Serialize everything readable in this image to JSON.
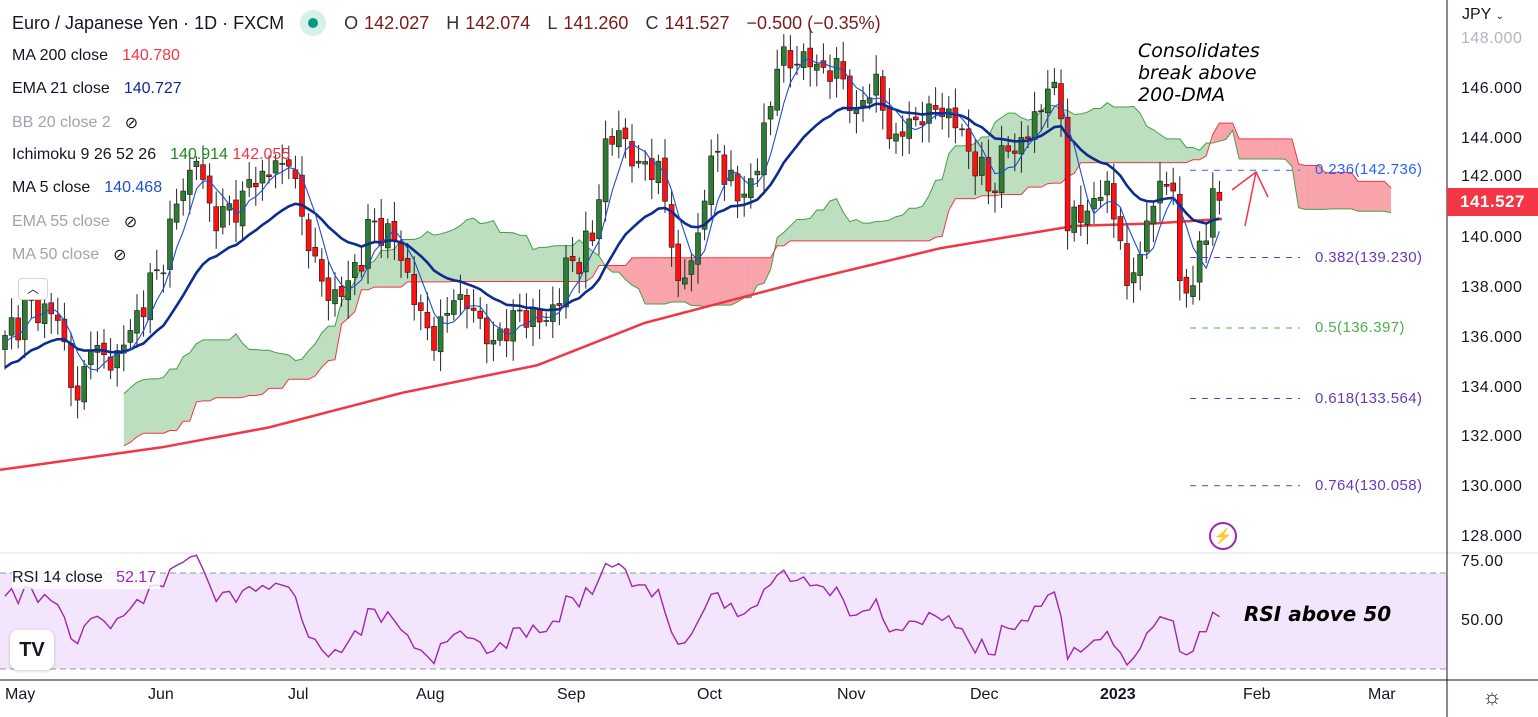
{
  "header": {
    "title": "Euro / Japanese Yen · 1D · FXCM",
    "open_label": "O",
    "open": "142.027",
    "high_label": "H",
    "high": "142.074",
    "low_label": "L",
    "low": "141.260",
    "close_label": "C",
    "close": "141.527",
    "change": "−0.500 (−0.35%)"
  },
  "legend": [
    {
      "label": "MA 200 close",
      "value": "140.780",
      "color": "#f23645"
    },
    {
      "label": "EMA 21 close",
      "value": "140.727",
      "color": "#0d2c8f"
    },
    {
      "label": "BB 20 close 2",
      "hidden": true
    },
    {
      "label": "Ichimoku 9 26 52 26",
      "value": "140.914",
      "value2": "142.055",
      "color": "#1b8a1b",
      "color2": "#f23645"
    },
    {
      "label": "MA 5 close",
      "value": "140.468",
      "color": "#1e4fcc"
    },
    {
      "label": "EMA 55 close",
      "hidden": true
    },
    {
      "label": "MA 50 close",
      "hidden": true
    }
  ],
  "rsi_legend": {
    "label": "RSI 14 close",
    "value": "52.17"
  },
  "currency": "JPY",
  "last_price": "141.527",
  "annotations": {
    "consolidates": [
      "Consolidates",
      "break above",
      "200-DMA"
    ],
    "rsi": "RSI above 50"
  },
  "fib_levels": [
    {
      "label": "0.236(142.736)",
      "price": 142.736,
      "color": "#2962ff"
    },
    {
      "label": "0.382(139.230)",
      "price": 139.23,
      "color": "#673ab7"
    },
    {
      "label": "0.5(136.397)",
      "price": 136.397,
      "color": "#4caf50"
    },
    {
      "label": "0.618(133.564)",
      "price": 133.564,
      "color": "#673ab7"
    },
    {
      "label": "0.764(130.058)",
      "price": 130.058,
      "color": "#673ab7"
    }
  ],
  "chart_data": {
    "type": "candlestick",
    "title": "Euro / Japanese Yen · 1D · FXCM",
    "ylim": [
      127.4,
      148.2
    ],
    "y_ticks": [
      "148.000",
      "146.000",
      "144.000",
      "142.000",
      "140.000",
      "138.000",
      "136.000",
      "134.000",
      "132.000",
      "130.000",
      "128.000"
    ],
    "x_ticks": [
      "May",
      "Jun",
      "Jul",
      "Aug",
      "Sep",
      "Oct",
      "Nov",
      "Dec",
      "2023",
      "Feb",
      "Mar"
    ],
    "rsi_ticks": [
      "75.00",
      "50.00"
    ],
    "close_anchors": [
      [
        -60,
        128.5
      ],
      [
        -40,
        130.5
      ],
      [
        -20,
        133.5
      ],
      [
        -8,
        135.2
      ],
      [
        0,
        136.1
      ],
      [
        4,
        137.5
      ],
      [
        8,
        136.7
      ],
      [
        11,
        133.5
      ],
      [
        13,
        135.5
      ],
      [
        16,
        134.7
      ],
      [
        19,
        136.3
      ],
      [
        23,
        138.7
      ],
      [
        27,
        141.9
      ],
      [
        29,
        143.1
      ],
      [
        32,
        140.3
      ],
      [
        36,
        141.9
      ],
      [
        39,
        142.7
      ],
      [
        43,
        142.9
      ],
      [
        46,
        139.5
      ],
      [
        49,
        137.5
      ],
      [
        52,
        138.3
      ],
      [
        56,
        140.7
      ],
      [
        59,
        139.9
      ],
      [
        63,
        137.1
      ],
      [
        65,
        135.5
      ],
      [
        68,
        137.5
      ],
      [
        71,
        137.1
      ],
      [
        74,
        135.9
      ],
      [
        77,
        137.1
      ],
      [
        82,
        136.7
      ],
      [
        86,
        139.1
      ],
      [
        89,
        139.9
      ],
      [
        91,
        144.0
      ],
      [
        94,
        144.0
      ],
      [
        96,
        143.1
      ],
      [
        99,
        143.1
      ],
      [
        102,
        138.3
      ],
      [
        104,
        139.1
      ],
      [
        106,
        141.5
      ],
      [
        108,
        143.5
      ],
      [
        111,
        141.5
      ],
      [
        114,
        142.7
      ],
      [
        117,
        146.8
      ],
      [
        120,
        147.0
      ],
      [
        123,
        147.0
      ],
      [
        127,
        146.4
      ],
      [
        129,
        145.2
      ],
      [
        132,
        146.6
      ],
      [
        134,
        144.0
      ],
      [
        137,
        144.8
      ],
      [
        140,
        145.4
      ],
      [
        143,
        145.2
      ],
      [
        146,
        143.5
      ],
      [
        149,
        141.9
      ],
      [
        152,
        143.5
      ],
      [
        155,
        144.0
      ],
      [
        158,
        146.0
      ],
      [
        160,
        144.8
      ],
      [
        161,
        140.3
      ],
      [
        164,
        141.1
      ],
      [
        167,
        142.3
      ],
      [
        169,
        139.9
      ],
      [
        170,
        138.1
      ],
      [
        173,
        140.7
      ],
      [
        175,
        142.3
      ],
      [
        177,
        141.9
      ],
      [
        178,
        138.3
      ],
      [
        180,
        138.1
      ],
      [
        182,
        139.9
      ],
      [
        183,
        142.0
      ],
      [
        184,
        141.527
      ]
    ],
    "ma200_anchors": [
      [
        0,
        130.7
      ],
      [
        60,
        131.6
      ],
      [
        100,
        132.4
      ],
      [
        150,
        133.8
      ],
      [
        200,
        134.9
      ],
      [
        240,
        136.6
      ],
      [
        300,
        138.3
      ],
      [
        350,
        139.6
      ],
      [
        400,
        140.5
      ],
      [
        430,
        140.6
      ],
      [
        455,
        140.78
      ]
    ],
    "rsi_series": "RSI(14) computed from closes",
    "rsi_levels": [
      70,
      30
    ]
  }
}
